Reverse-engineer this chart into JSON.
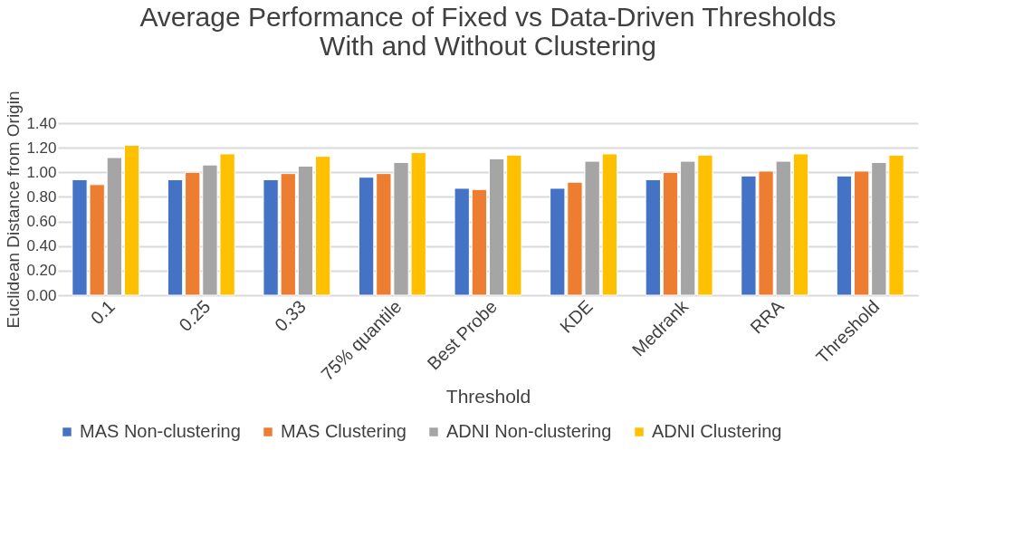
{
  "chart_data": {
    "type": "bar",
    "title": [
      "Average Performance of Fixed vs Data-Driven Thresholds",
      "With and Without Clustering"
    ],
    "xlabel": "Threshold",
    "ylabel": "Euclidean  Distance from Origin",
    "categories": [
      "0.1",
      "0.25",
      "0.33",
      "75% quantile",
      "Best Probe",
      "KDE",
      "Medrank",
      "RRA",
      "Threshold"
    ],
    "series": [
      {
        "name": "MAS Non-clustering",
        "color": "#4472c4",
        "values": [
          0.94,
          0.94,
          0.94,
          0.96,
          0.87,
          0.87,
          0.94,
          0.97,
          0.97
        ]
      },
      {
        "name": "MAS Clustering",
        "color": "#ed7d31",
        "values": [
          0.9,
          1.0,
          0.99,
          0.99,
          0.86,
          0.92,
          1.0,
          1.01,
          1.01
        ]
      },
      {
        "name": "ADNI Non-clustering",
        "color": "#a5a5a5",
        "values": [
          1.12,
          1.06,
          1.05,
          1.08,
          1.11,
          1.09,
          1.09,
          1.09,
          1.08
        ]
      },
      {
        "name": "ADNI Clustering",
        "color": "#ffc000",
        "values": [
          1.22,
          1.15,
          1.13,
          1.16,
          1.14,
          1.15,
          1.14,
          1.15,
          1.14
        ]
      }
    ],
    "ylim": [
      0,
      1.4
    ],
    "yticks": [
      {
        "value": 0,
        "label": "0.00"
      },
      {
        "value": 0.2,
        "label": "0.20"
      },
      {
        "value": 0.4,
        "label": "0.40"
      },
      {
        "value": 0.6,
        "label": "0.60"
      },
      {
        "value": 0.8,
        "label": "0.80"
      },
      {
        "value": 1.0,
        "label": "1.00"
      },
      {
        "value": 1.2,
        "label": "1.20"
      },
      {
        "value": 1.4,
        "label": "1.40"
      }
    ],
    "grid": "y",
    "legend": "bottom"
  }
}
